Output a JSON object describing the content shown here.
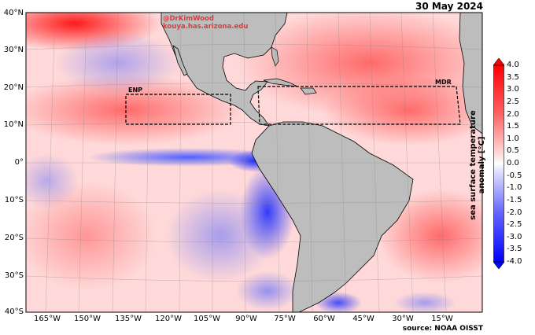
{
  "date": "30 May 2024",
  "credit": {
    "handle": "@DrKimWood",
    "url": "kouya.has.arizona.edu"
  },
  "source": "source: NOAA OISST",
  "lat_labels": [
    "40°N",
    "30°N",
    "20°N",
    "10°N",
    "0°",
    "10°S",
    "20°S",
    "30°S",
    "40°S"
  ],
  "lon_labels": [
    "165°W",
    "150°W",
    "135°W",
    "120°W",
    "105°W",
    "90°W",
    "75°W",
    "60°W",
    "45°W",
    "30°W",
    "15°W"
  ],
  "regions": [
    {
      "label": "ENP"
    },
    {
      "label": "MDR"
    }
  ],
  "colorbar": {
    "label": "sea surface temperature anomaly [°C]",
    "ticks": [
      "4.0",
      "3.5",
      "3.0",
      "2.5",
      "2.0",
      "1.5",
      "1.0",
      "0.5",
      "0.0",
      "-0.5",
      "-1.0",
      "-1.5",
      "-2.0",
      "-2.5",
      "-3.0",
      "-3.5",
      "-4.0"
    ],
    "range": [
      -4.0,
      4.0
    ],
    "colors": {
      "max": "#ff0000",
      "mid": "#ffffff",
      "min": "#0000ff"
    }
  },
  "colors": {
    "land": "#bdbdbd",
    "region_box": "#000000",
    "credit": "#d04040"
  }
}
